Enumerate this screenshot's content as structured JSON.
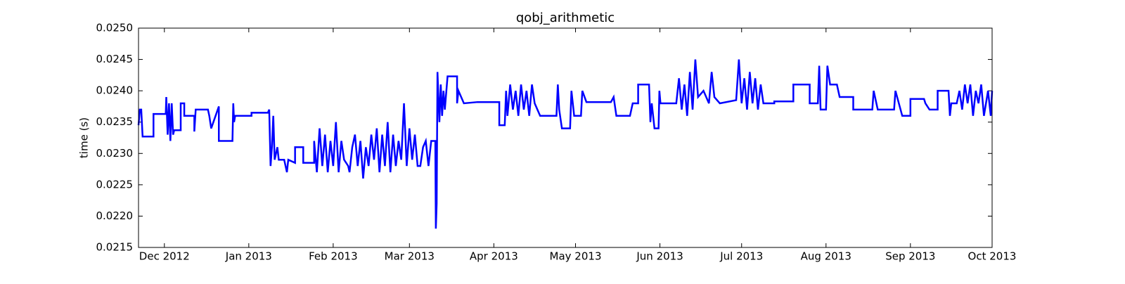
{
  "chart_data": {
    "type": "line",
    "title": "qobj_arithmetic",
    "ylabel": "time (s)",
    "x": [
      -9.5,
      -9,
      -8.5,
      -8,
      -4,
      -4,
      0.5,
      0.7,
      1.2,
      1.7,
      2.2,
      2.7,
      3.2,
      3.6,
      6,
      6,
      7.3,
      7.3,
      11,
      11,
      11.5,
      16,
      16.5,
      17.2,
      18,
      20,
      20,
      25,
      25.3,
      25.6,
      26,
      32,
      32,
      38,
      38.5,
      39,
      39.5,
      40,
      40.5,
      41.5,
      42,
      44,
      45,
      45.5,
      48,
      48,
      51,
      51,
      55,
      55,
      56,
      57,
      58,
      59,
      60,
      61,
      62,
      63,
      64,
      65,
      66,
      67.5,
      68,
      69,
      70,
      71,
      72,
      73,
      74,
      75,
      76,
      77,
      78,
      79,
      80,
      81,
      82,
      83,
      84,
      85,
      86,
      87,
      88,
      89,
      90,
      91,
      92,
      93,
      94,
      95,
      96,
      97,
      98,
      99.5,
      99.7,
      100,
      100.3,
      101,
      101.5,
      102,
      102.5,
      103,
      104,
      107.5,
      107.5,
      108,
      109,
      110,
      115,
      123,
      123,
      125,
      125.5,
      126,
      127,
      128,
      129,
      130,
      131,
      132,
      133,
      134,
      135,
      136,
      138,
      144,
      144.5,
      145,
      146,
      149,
      149.5,
      150.5,
      153,
      153.5,
      155,
      164,
      165,
      166,
      171,
      172,
      174,
      174,
      178,
      178.5,
      179,
      180,
      181.5,
      181.8,
      182.2,
      188,
      189,
      190,
      191,
      192,
      193,
      194,
      195,
      196,
      198,
      200,
      201,
      202,
      204,
      210,
      211,
      212,
      213,
      214,
      215,
      216,
      217,
      218,
      219,
      220,
      224,
      224,
      231,
      231,
      237,
      237,
      240,
      240.5,
      241,
      243,
      243.5,
      244.5,
      247,
      248,
      253,
      253,
      260,
      260.5,
      262,
      268,
      268.5,
      271,
      274,
      274,
      279,
      279.5,
      281,
      284,
      284,
      288,
      288.5,
      289,
      291,
      292,
      293,
      294,
      295,
      296,
      297,
      298,
      299,
      300,
      301,
      302.5,
      303.5,
      304
    ],
    "series": [
      {
        "color": "#0000ff",
        "values": [
          0.02345,
          0.0237,
          0.0237,
          0.02327,
          0.02327,
          0.02363,
          0.02363,
          0.0239,
          0.0233,
          0.0238,
          0.0232,
          0.0238,
          0.0233,
          0.02337,
          0.02337,
          0.0238,
          0.0238,
          0.0236,
          0.0236,
          0.02335,
          0.0237,
          0.0237,
          0.0236,
          0.0234,
          0.0235,
          0.02375,
          0.0232,
          0.0232,
          0.0238,
          0.0235,
          0.0236,
          0.0236,
          0.02365,
          0.02365,
          0.0237,
          0.0228,
          0.0231,
          0.0236,
          0.0229,
          0.0231,
          0.0229,
          0.0229,
          0.0227,
          0.0229,
          0.02285,
          0.0231,
          0.0231,
          0.02285,
          0.02285,
          0.0232,
          0.0227,
          0.0234,
          0.0228,
          0.0233,
          0.0227,
          0.0232,
          0.0228,
          0.0235,
          0.0227,
          0.0232,
          0.0229,
          0.0228,
          0.0227,
          0.0231,
          0.0233,
          0.0228,
          0.0232,
          0.0226,
          0.0231,
          0.0228,
          0.0233,
          0.0229,
          0.0234,
          0.0227,
          0.0233,
          0.0228,
          0.0235,
          0.0227,
          0.0233,
          0.0228,
          0.0232,
          0.0229,
          0.0238,
          0.0228,
          0.0234,
          0.0229,
          0.0233,
          0.0228,
          0.0228,
          0.0231,
          0.0232,
          0.0228,
          0.0232,
          0.0232,
          0.0218,
          0.0222,
          0.0243,
          0.0235,
          0.0241,
          0.0236,
          0.024,
          0.0237,
          0.02423,
          0.02423,
          0.0238,
          0.024,
          0.0239,
          0.0238,
          0.02382,
          0.02382,
          0.02345,
          0.02345,
          0.024,
          0.0236,
          0.0241,
          0.0237,
          0.024,
          0.0236,
          0.0241,
          0.0237,
          0.024,
          0.0236,
          0.0241,
          0.0238,
          0.0236,
          0.0236,
          0.0241,
          0.0237,
          0.0234,
          0.0234,
          0.024,
          0.0236,
          0.0236,
          0.024,
          0.02382,
          0.02382,
          0.0239,
          0.0236,
          0.0236,
          0.0238,
          0.0238,
          0.0241,
          0.0241,
          0.0235,
          0.0238,
          0.0234,
          0.0234,
          0.024,
          0.0238,
          0.0238,
          0.0242,
          0.0237,
          0.0241,
          0.0236,
          0.0243,
          0.0237,
          0.0245,
          0.0239,
          0.024,
          0.0238,
          0.0243,
          0.0239,
          0.0238,
          0.02385,
          0.0245,
          0.0238,
          0.0242,
          0.0237,
          0.0243,
          0.0238,
          0.0242,
          0.0237,
          0.0241,
          0.0238,
          0.0238,
          0.02383,
          0.02383,
          0.0241,
          0.0241,
          0.0238,
          0.0238,
          0.0244,
          0.0237,
          0.0237,
          0.0244,
          0.0241,
          0.0241,
          0.0239,
          0.0239,
          0.0237,
          0.0237,
          0.024,
          0.0237,
          0.0237,
          0.024,
          0.0236,
          0.0236,
          0.02387,
          0.02387,
          0.0238,
          0.0237,
          0.0237,
          0.024,
          0.024,
          0.0236,
          0.0238,
          0.0238,
          0.024,
          0.0237,
          0.0241,
          0.0238,
          0.0241,
          0.0236,
          0.024,
          0.0238,
          0.0241,
          0.0236,
          0.024,
          0.0236,
          0.024
        ]
      }
    ],
    "xlim": [
      -9.5,
      304
    ],
    "xticks": [
      {
        "value": 0,
        "label": "Dec 2012"
      },
      {
        "value": 31,
        "label": "Jan 2013"
      },
      {
        "value": 62,
        "label": "Feb 2013"
      },
      {
        "value": 90,
        "label": "Mar 2013"
      },
      {
        "value": 121,
        "label": "Apr 2013"
      },
      {
        "value": 151,
        "label": "May 2013"
      },
      {
        "value": 182,
        "label": "Jun 2013"
      },
      {
        "value": 212,
        "label": "Jul 2013"
      },
      {
        "value": 243,
        "label": "Aug 2013"
      },
      {
        "value": 274,
        "label": "Sep 2013"
      },
      {
        "value": 304,
        "label": "Oct 2013"
      }
    ],
    "ylim": [
      0.0215,
      0.025
    ],
    "yticks": [
      0.0215,
      {
        "value": 0.022,
        "label": "0.0220"
      },
      0.0225,
      {
        "value": 0.023,
        "label": "0.0230"
      },
      0.0235,
      {
        "value": 0.024,
        "label": "0.0240"
      },
      0.0245,
      {
        "value": 0.025,
        "label": "0.0250"
      }
    ],
    "grid": false
  }
}
